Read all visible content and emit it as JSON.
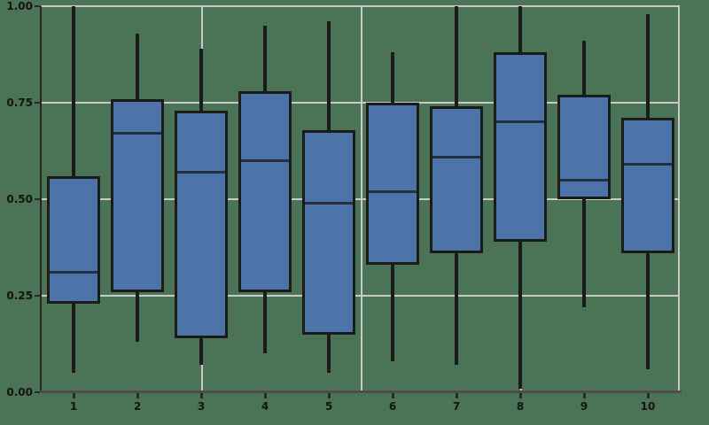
{
  "chart_data": {
    "type": "box",
    "title": "",
    "xlabel": "",
    "ylabel": "",
    "categories": [
      "1",
      "2",
      "3",
      "4",
      "5",
      "6",
      "7",
      "8",
      "9",
      "10"
    ],
    "boxes": [
      {
        "category": "1",
        "whisker_low": 0.05,
        "q1": 0.23,
        "median": 0.31,
        "q3": 0.56,
        "whisker_high": 1.0
      },
      {
        "category": "2",
        "whisker_low": 0.13,
        "q1": 0.26,
        "median": 0.67,
        "q3": 0.76,
        "whisker_high": 0.93
      },
      {
        "category": "3",
        "whisker_low": 0.07,
        "q1": 0.14,
        "median": 0.57,
        "q3": 0.73,
        "whisker_high": 0.89
      },
      {
        "category": "4",
        "whisker_low": 0.1,
        "q1": 0.26,
        "median": 0.6,
        "q3": 0.78,
        "whisker_high": 0.95
      },
      {
        "category": "5",
        "whisker_low": 0.05,
        "q1": 0.15,
        "median": 0.49,
        "q3": 0.68,
        "whisker_high": 0.96
      },
      {
        "category": "6",
        "whisker_low": 0.08,
        "q1": 0.33,
        "median": 0.52,
        "q3": 0.75,
        "whisker_high": 0.88
      },
      {
        "category": "7",
        "whisker_low": 0.07,
        "q1": 0.36,
        "median": 0.61,
        "q3": 0.74,
        "whisker_high": 1.0
      },
      {
        "category": "8",
        "whisker_low": 0.01,
        "q1": 0.39,
        "median": 0.7,
        "q3": 0.88,
        "whisker_high": 1.0
      },
      {
        "category": "9",
        "whisker_low": 0.22,
        "q1": 0.5,
        "median": 0.55,
        "q3": 0.77,
        "whisker_high": 0.91
      },
      {
        "category": "10",
        "whisker_low": 0.06,
        "q1": 0.36,
        "median": 0.59,
        "q3": 0.71,
        "whisker_high": 0.98
      }
    ],
    "ylim": [
      0.0,
      1.0
    ],
    "xlim": [
      0.5,
      10.5
    ],
    "yticks": [
      {
        "label": "0.00",
        "value": 0.0
      },
      {
        "label": "0.25",
        "value": 0.25
      },
      {
        "label": "0.50",
        "value": 0.5
      },
      {
        "label": "0.75",
        "value": 0.75
      },
      {
        "label": "1.00",
        "value": 1.0
      }
    ],
    "grid": {
      "horizontal_values": [
        0.25,
        0.5,
        0.75,
        1.0
      ],
      "vertical_x_values": [
        3,
        5.5,
        8,
        10.5
      ]
    },
    "legend": null,
    "colors": {
      "background": "#4b7355",
      "box_fill": "#4d74a9",
      "box_edge": "#1b1b1b",
      "median_line": "#263140",
      "whisker": "#1b1b1b",
      "gridline": "#c9c9c9",
      "spine_left": "#262626",
      "spine_bottom": "#4d4d4d",
      "tick_mark": "#2a2a2a",
      "tick_label": "#141414"
    }
  }
}
